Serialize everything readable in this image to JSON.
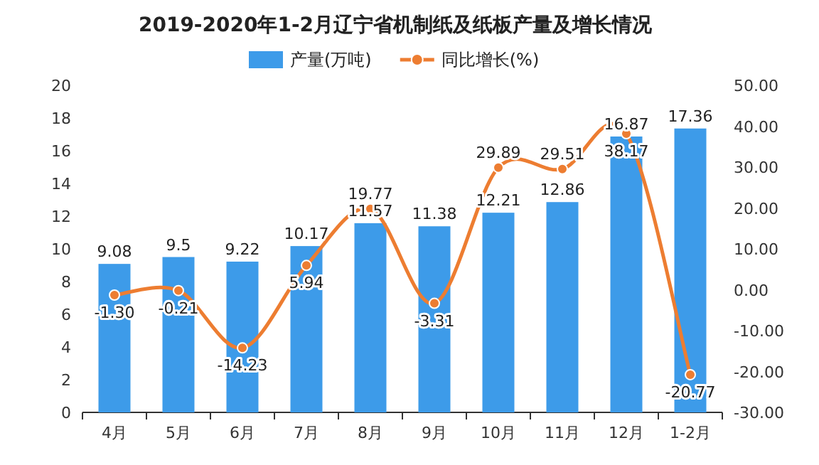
{
  "chart_data": {
    "type": "bar",
    "title": "2019-2020年1-2月辽宁省机制纸及纸板产量及增长情况",
    "categories": [
      "4月",
      "5月",
      "6月",
      "7月",
      "8月",
      "9月",
      "10月",
      "11月",
      "12月",
      "1-2月"
    ],
    "series": [
      {
        "name": "产量(万吨)",
        "color": "#3d9be9",
        "values": [
          9.08,
          9.5,
          9.22,
          10.17,
          11.57,
          11.38,
          12.21,
          12.86,
          16.87,
          17.36
        ],
        "value_labels": [
          "9.08",
          "9.5",
          "9.22",
          "10.17",
          "11.57",
          "11.38",
          "12.21",
          "12.86",
          "16.87",
          "17.36"
        ]
      },
      {
        "name": "同比增长(%)",
        "type": "line",
        "axis": "y2",
        "color": "#ed7d31",
        "values": [
          -1.3,
          -0.21,
          -14.23,
          5.94,
          19.77,
          -3.31,
          29.89,
          29.51,
          38.17,
          -20.77
        ],
        "value_labels": [
          "-1.30",
          "-0.21",
          "-14.23",
          "5.94",
          "19.77",
          "-3.31",
          "29.89",
          "29.51",
          "38.17",
          "-20.77"
        ]
      }
    ],
    "ylim": [
      0,
      20
    ],
    "yticks": [
      0,
      2,
      4,
      6,
      8,
      10,
      12,
      14,
      16,
      18,
      20
    ],
    "y2lim": [
      -30,
      50
    ],
    "y2ticks": [
      {
        "value": 50,
        "label": "50.00"
      },
      {
        "value": 40,
        "label": "40.00"
      },
      {
        "value": 30,
        "label": "30.00"
      },
      {
        "value": 20,
        "label": "20.00"
      },
      {
        "value": 10,
        "label": "10.00"
      },
      {
        "value": 0,
        "label": "0.00"
      },
      {
        "value": -10,
        "label": "-10.00"
      },
      {
        "value": -20,
        "label": "-20.00"
      },
      {
        "value": -30,
        "label": "-30.00"
      }
    ],
    "legend": "top",
    "marker": "circle"
  }
}
